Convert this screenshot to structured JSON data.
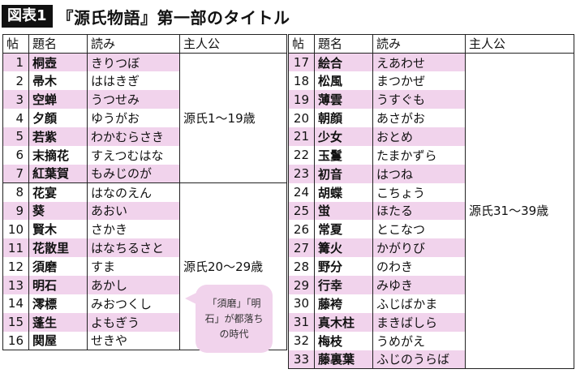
{
  "header": {
    "figure_label": "図表1",
    "title": "『源氏物語』第一部のタイトル"
  },
  "columns": {
    "chapter": "帖",
    "name": "題名",
    "reading": "読み",
    "protagonist": "主人公"
  },
  "left_table": {
    "rows": [
      {
        "num": "1",
        "title": "桐壺",
        "reading": "きりつぼ"
      },
      {
        "num": "2",
        "title": "帚木",
        "reading": "ははきぎ"
      },
      {
        "num": "3",
        "title": "空蝉",
        "reading": "うつせみ"
      },
      {
        "num": "4",
        "title": "夕顔",
        "reading": "ゆうがお"
      },
      {
        "num": "5",
        "title": "若紫",
        "reading": "わかむらさき"
      },
      {
        "num": "6",
        "title": "末摘花",
        "reading": "すえつむはな"
      },
      {
        "num": "7",
        "title": "紅葉賀",
        "reading": "もみじのが"
      },
      {
        "num": "8",
        "title": "花宴",
        "reading": "はなのえん"
      },
      {
        "num": "9",
        "title": "葵",
        "reading": "あおい"
      },
      {
        "num": "10",
        "title": "賢木",
        "reading": "さかき"
      },
      {
        "num": "11",
        "title": "花散里",
        "reading": "はなちるさと"
      },
      {
        "num": "12",
        "title": "須磨",
        "reading": "すま"
      },
      {
        "num": "13",
        "title": "明石",
        "reading": "あかし"
      },
      {
        "num": "14",
        "title": "澪標",
        "reading": "みおつくし"
      },
      {
        "num": "15",
        "title": "蓬生",
        "reading": "よもぎう"
      },
      {
        "num": "16",
        "title": "関屋",
        "reading": "せきや"
      }
    ],
    "protagonist_group_1": "源氏1～19歳",
    "protagonist_group_2": "源氏20～29歳"
  },
  "right_table": {
    "rows": [
      {
        "num": "17",
        "title": "絵合",
        "reading": "えあわせ"
      },
      {
        "num": "18",
        "title": "松風",
        "reading": "まつかぜ"
      },
      {
        "num": "19",
        "title": "薄雲",
        "reading": "うすぐも"
      },
      {
        "num": "20",
        "title": "朝顔",
        "reading": "あさがお"
      },
      {
        "num": "21",
        "title": "少女",
        "reading": "おとめ"
      },
      {
        "num": "22",
        "title": "玉鬘",
        "reading": "たまかずら"
      },
      {
        "num": "23",
        "title": "初音",
        "reading": "はつね"
      },
      {
        "num": "24",
        "title": "胡蝶",
        "reading": "こちょう"
      },
      {
        "num": "25",
        "title": "蛍",
        "reading": "ほたる"
      },
      {
        "num": "26",
        "title": "常夏",
        "reading": "とこなつ"
      },
      {
        "num": "27",
        "title": "篝火",
        "reading": "かがりび"
      },
      {
        "num": "28",
        "title": "野分",
        "reading": "のわき"
      },
      {
        "num": "29",
        "title": "行幸",
        "reading": "みゆき"
      },
      {
        "num": "30",
        "title": "藤袴",
        "reading": "ふじばかま"
      },
      {
        "num": "31",
        "title": "真木柱",
        "reading": "まきばしら"
      },
      {
        "num": "32",
        "title": "梅枝",
        "reading": "うめがえ"
      },
      {
        "num": "33",
        "title": "藤裏葉",
        "reading": "ふじのうらば"
      }
    ],
    "protagonist": "源氏31～39歳"
  },
  "callout": {
    "text": "「須磨」「明石」が都落ちの時代"
  },
  "colors": {
    "row_highlight": "#f1d3ec",
    "label_bg": "#111111"
  }
}
